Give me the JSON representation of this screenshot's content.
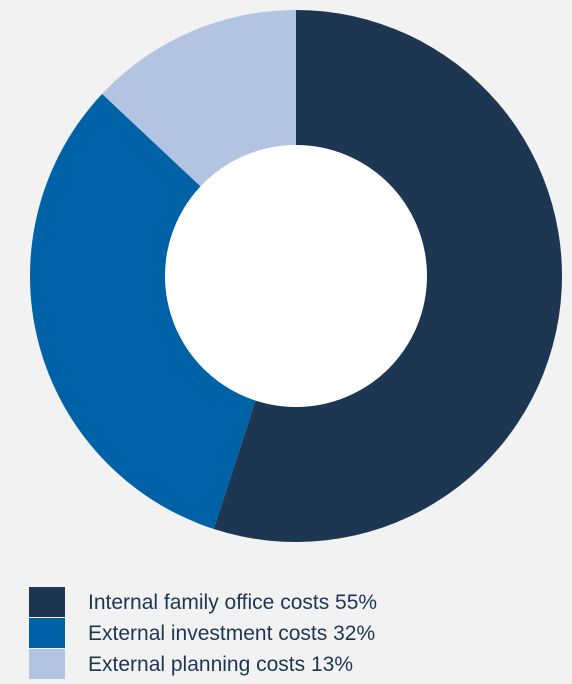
{
  "chart_data": {
    "type": "pie",
    "variant": "donut",
    "title": "",
    "slices": [
      {
        "label": "Internal family office costs",
        "value": 55,
        "display": "Internal family office costs 55%",
        "color": "#1d3652"
      },
      {
        "label": "External investment costs",
        "value": 32,
        "display": "External investment costs 32%",
        "color": "#0062a6"
      },
      {
        "label": "External planning costs",
        "value": 13,
        "display": "External planning costs 13%",
        "color": "#b2c4e2"
      }
    ],
    "legend_position": "bottom-left"
  },
  "colors": {
    "background": "#f2f2f3",
    "hole": "#ffffff",
    "text": "#1d3652"
  }
}
